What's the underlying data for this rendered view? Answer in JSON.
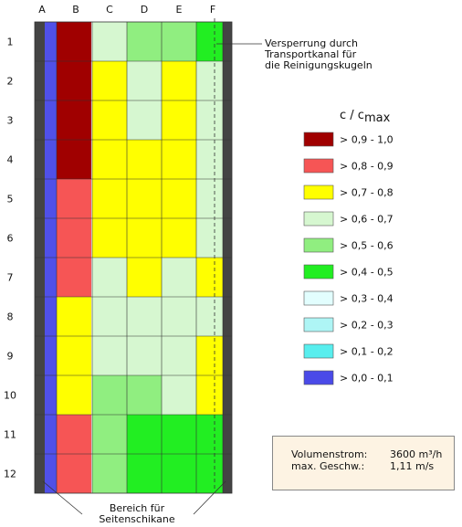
{
  "columns": [
    "A",
    "B",
    "C",
    "D",
    "E",
    "F"
  ],
  "rows": [
    "1",
    "2",
    "3",
    "4",
    "5",
    "6",
    "7",
    "8",
    "9",
    "10",
    "11",
    "12"
  ],
  "colors": {
    "g1": "#a00000",
    "g2": "#f65555",
    "g3": "#ffff00",
    "g4": "#d6f7d0",
    "g5": "#90ee80",
    "g6": "#22ee22",
    "g7": "#e2fefe",
    "g8": "#aef5f5",
    "g9": "#58eeee",
    "g10": "#4a4ae8",
    "wall": "#444444",
    "a_strip": "#5050e8"
  },
  "cells": [
    [
      "g1",
      "g4",
      "g5",
      "g5",
      "g6"
    ],
    [
      "g1",
      "g3",
      "g4",
      "g3",
      "g4"
    ],
    [
      "g1",
      "g3",
      "g4",
      "g3",
      "g4"
    ],
    [
      "g1",
      "g3",
      "g3",
      "g3",
      "g4"
    ],
    [
      "g2",
      "g3",
      "g3",
      "g3",
      "g4"
    ],
    [
      "g2",
      "g3",
      "g3",
      "g3",
      "g4"
    ],
    [
      "g2",
      "g4",
      "g3",
      "g4",
      "g3"
    ],
    [
      "g3",
      "g4",
      "g4",
      "g4",
      "g4"
    ],
    [
      "g3",
      "g4",
      "g4",
      "g4",
      "g3"
    ],
    [
      "g3",
      "g5",
      "g5",
      "g4",
      "g3"
    ],
    [
      "g2",
      "g5",
      "g6",
      "g6",
      "g6"
    ],
    [
      "g2",
      "g5",
      "g6",
      "g6",
      "g6"
    ]
  ],
  "annotation_top": [
    "Versperrung durch",
    "Transportkanal für",
    "die Reinigungskugeln"
  ],
  "annotation_bottom": [
    "Bereich für",
    "Seitenschikane"
  ],
  "legend": {
    "title_main": "c / c",
    "title_sub": "max",
    "items": [
      {
        "label": "> 0,9 - 1,0",
        "color_key": "g1"
      },
      {
        "label": "> 0,8 - 0,9",
        "color_key": "g2"
      },
      {
        "label": "> 0,7 - 0,8",
        "color_key": "g3"
      },
      {
        "label": "> 0,6 - 0,7",
        "color_key": "g4"
      },
      {
        "label": "> 0,5 - 0,6",
        "color_key": "g5"
      },
      {
        "label": "> 0,4 - 0,5",
        "color_key": "g6"
      },
      {
        "label": "> 0,3 - 0,4",
        "color_key": "g7"
      },
      {
        "label": "> 0,2 - 0,3",
        "color_key": "g8"
      },
      {
        "label": "> 0,1 - 0,2",
        "color_key": "g9"
      },
      {
        "label": "> 0,0 - 0,1",
        "color_key": "g10"
      }
    ]
  },
  "info": {
    "flow_label": "Volumenstrom:",
    "flow_value": "3600 m³/h",
    "speed_label": "max. Geschw.:",
    "speed_value": "1,11 m/s"
  }
}
